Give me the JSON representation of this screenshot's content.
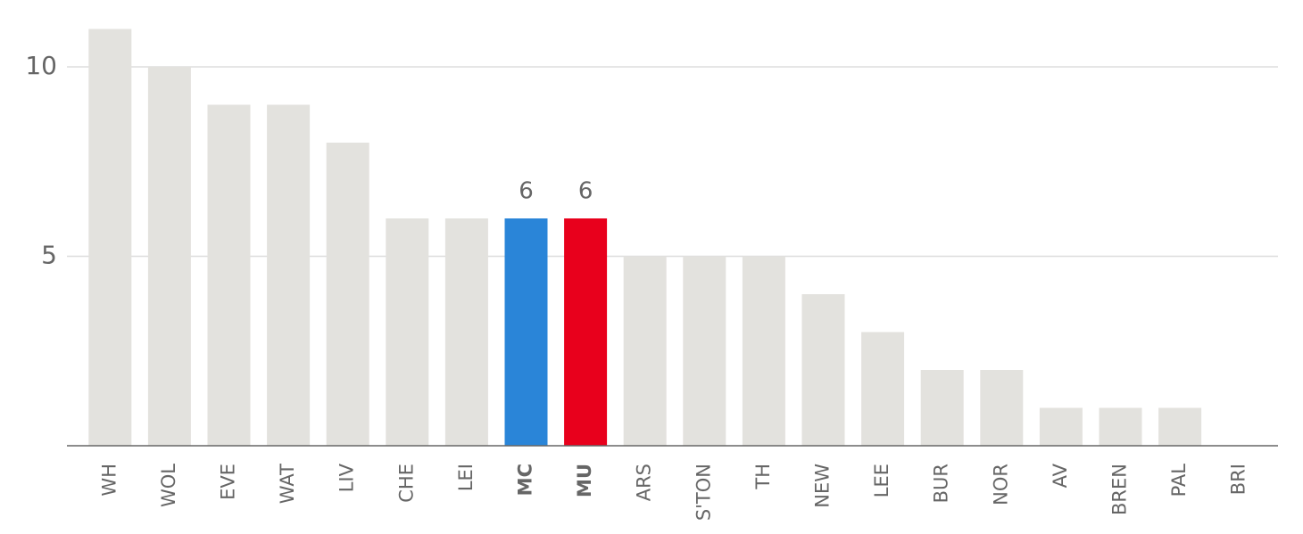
{
  "chart_data": {
    "type": "bar",
    "categories": [
      "WH",
      "WOL",
      "EVE",
      "WAT",
      "LIV",
      "CHE",
      "LEI",
      "MC",
      "MU",
      "ARS",
      "S'TON",
      "TH",
      "NEW",
      "LEE",
      "BUR",
      "NOR",
      "AV",
      "BREN",
      "PAL",
      "BRI"
    ],
    "values": [
      11,
      10,
      9,
      9,
      8,
      6,
      6,
      6,
      6,
      5,
      5,
      5,
      4,
      3,
      2,
      2,
      1,
      1,
      1,
      0
    ],
    "color": "#e3e2de",
    "colors": [
      "#e3e2de",
      "#e3e2de",
      "#e3e2de",
      "#e3e2de",
      "#e3e2de",
      "#e3e2de",
      "#e3e2de",
      "#2a85d8",
      "#e8001c",
      "#e3e2de",
      "#e3e2de",
      "#e3e2de",
      "#e3e2de",
      "#e3e2de",
      "#e3e2de",
      "#e3e2de",
      "#e3e2de",
      "#e3e2de",
      "#e3e2de",
      "#e3e2de"
    ],
    "ylim": [
      0,
      11
    ],
    "yticks": [
      5,
      10
    ],
    "grid": true
  }
}
